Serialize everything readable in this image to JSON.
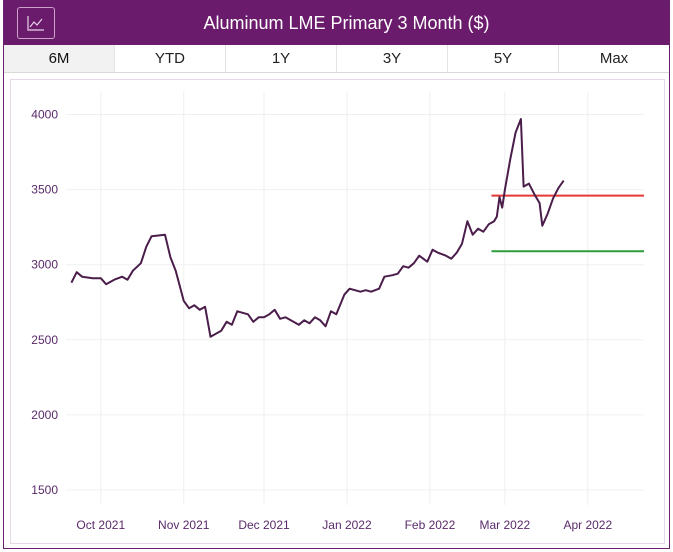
{
  "header": {
    "title": "Aluminum LME Primary 3 Month ($)",
    "chart_button_icon": "line-chart-icon"
  },
  "tabs": [
    {
      "label": "6M",
      "active": true
    },
    {
      "label": "YTD",
      "active": false
    },
    {
      "label": "1Y",
      "active": false
    },
    {
      "label": "3Y",
      "active": false
    },
    {
      "label": "5Y",
      "active": false
    },
    {
      "label": "Max",
      "active": false
    }
  ],
  "colors": {
    "brand": "#6b1b6b",
    "tick_text": "#5a2a6a",
    "series": "#4a1d4a",
    "resistance": "#e53935",
    "support": "#2e9e3a"
  },
  "chart_data": {
    "type": "line",
    "title": "Aluminum LME Primary 3 Month ($)",
    "xlabel": "",
    "ylabel": "",
    "ylim": [
      1400,
      4150
    ],
    "yticks": [
      1500,
      2000,
      2500,
      3000,
      3500,
      4000
    ],
    "xlim": [
      "2021-09-18",
      "2022-04-22"
    ],
    "xticks": [
      {
        "date": "2021-10-01",
        "label": "Oct 2021"
      },
      {
        "date": "2021-11-01",
        "label": "Nov 2021"
      },
      {
        "date": "2021-12-01",
        "label": "Dec 2021"
      },
      {
        "date": "2022-01-01",
        "label": "Jan 2022"
      },
      {
        "date": "2022-02-01",
        "label": "Feb 2022"
      },
      {
        "date": "2022-03-01",
        "label": "Mar 2022"
      },
      {
        "date": "2022-04-01",
        "label": "Apr 2022"
      }
    ],
    "grid": true,
    "series": [
      {
        "points": [
          [
            "2021-09-20",
            2880
          ],
          [
            "2021-09-22",
            2950
          ],
          [
            "2021-09-24",
            2920
          ],
          [
            "2021-09-28",
            2910
          ],
          [
            "2021-10-01",
            2910
          ],
          [
            "2021-10-03",
            2870
          ],
          [
            "2021-10-06",
            2900
          ],
          [
            "2021-10-09",
            2920
          ],
          [
            "2021-10-11",
            2900
          ],
          [
            "2021-10-13",
            2960
          ],
          [
            "2021-10-16",
            3010
          ],
          [
            "2021-10-18",
            3120
          ],
          [
            "2021-10-20",
            3190
          ],
          [
            "2021-10-25",
            3200
          ],
          [
            "2021-10-27",
            3050
          ],
          [
            "2021-10-29",
            2960
          ],
          [
            "2021-11-01",
            2760
          ],
          [
            "2021-11-03",
            2710
          ],
          [
            "2021-11-05",
            2730
          ],
          [
            "2021-11-07",
            2700
          ],
          [
            "2021-11-09",
            2720
          ],
          [
            "2021-11-11",
            2520
          ],
          [
            "2021-11-13",
            2540
          ],
          [
            "2021-11-15",
            2560
          ],
          [
            "2021-11-17",
            2620
          ],
          [
            "2021-11-19",
            2600
          ],
          [
            "2021-11-21",
            2690
          ],
          [
            "2021-11-23",
            2680
          ],
          [
            "2021-11-25",
            2670
          ],
          [
            "2021-11-27",
            2620
          ],
          [
            "2021-11-29",
            2650
          ],
          [
            "2021-12-01",
            2650
          ],
          [
            "2021-12-03",
            2670
          ],
          [
            "2021-12-05",
            2700
          ],
          [
            "2021-12-07",
            2640
          ],
          [
            "2021-12-09",
            2650
          ],
          [
            "2021-12-11",
            2630
          ],
          [
            "2021-12-14",
            2600
          ],
          [
            "2021-12-16",
            2630
          ],
          [
            "2021-12-18",
            2610
          ],
          [
            "2021-12-20",
            2650
          ],
          [
            "2021-12-22",
            2630
          ],
          [
            "2021-12-24",
            2590
          ],
          [
            "2021-12-26",
            2690
          ],
          [
            "2021-12-28",
            2670
          ],
          [
            "2021-12-31",
            2800
          ],
          [
            "2022-01-02",
            2840
          ],
          [
            "2022-01-04",
            2830
          ],
          [
            "2022-01-06",
            2820
          ],
          [
            "2022-01-08",
            2830
          ],
          [
            "2022-01-10",
            2820
          ],
          [
            "2022-01-13",
            2840
          ],
          [
            "2022-01-15",
            2920
          ],
          [
            "2022-01-18",
            2930
          ],
          [
            "2022-01-20",
            2940
          ],
          [
            "2022-01-22",
            2990
          ],
          [
            "2022-01-24",
            2980
          ],
          [
            "2022-01-26",
            3010
          ],
          [
            "2022-01-28",
            3060
          ],
          [
            "2022-01-31",
            3020
          ],
          [
            "2022-02-02",
            3100
          ],
          [
            "2022-02-04",
            3080
          ],
          [
            "2022-02-07",
            3060
          ],
          [
            "2022-02-09",
            3040
          ],
          [
            "2022-02-11",
            3080
          ],
          [
            "2022-02-13",
            3140
          ],
          [
            "2022-02-15",
            3290
          ],
          [
            "2022-02-17",
            3200
          ],
          [
            "2022-02-19",
            3240
          ],
          [
            "2022-02-21",
            3220
          ],
          [
            "2022-02-23",
            3270
          ],
          [
            "2022-02-25",
            3290
          ],
          [
            "2022-02-26",
            3320
          ],
          [
            "2022-02-27",
            3450
          ],
          [
            "2022-02-28",
            3380
          ],
          [
            "2022-03-01",
            3500
          ],
          [
            "2022-03-03",
            3700
          ],
          [
            "2022-03-05",
            3880
          ],
          [
            "2022-03-07",
            3970
          ],
          [
            "2022-03-08",
            3520
          ],
          [
            "2022-03-10",
            3540
          ],
          [
            "2022-03-12",
            3470
          ],
          [
            "2022-03-14",
            3410
          ],
          [
            "2022-03-15",
            3260
          ],
          [
            "2022-03-17",
            3340
          ],
          [
            "2022-03-19",
            3440
          ],
          [
            "2022-03-21",
            3510
          ],
          [
            "2022-03-23",
            3560
          ]
        ]
      }
    ],
    "reference_lines": [
      {
        "value": 3460,
        "x_start": "2022-02-24",
        "x_end": "2022-04-22",
        "color": "#e53935"
      },
      {
        "value": 3090,
        "x_start": "2022-02-24",
        "x_end": "2022-04-22",
        "color": "#2e9e3a"
      }
    ]
  }
}
